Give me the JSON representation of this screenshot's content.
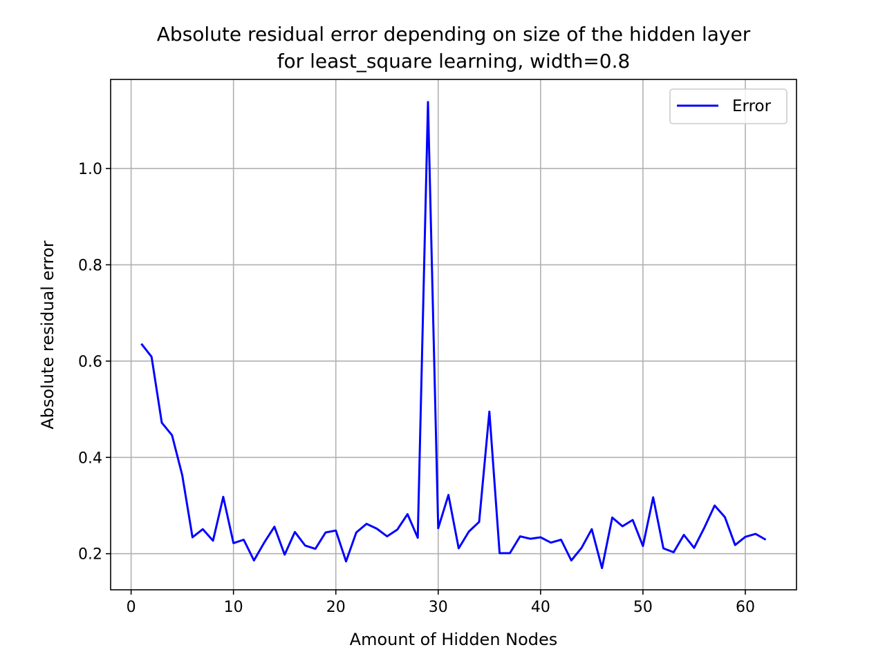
{
  "chart_data": {
    "type": "line",
    "title": "Absolute residual error depending on size of the hidden layer",
    "subtitle": "for least_square learning, width=0.8",
    "xlabel": "Amount of Hidden Nodes",
    "ylabel": "Absolute residual error",
    "xlim": [
      -2,
      65
    ],
    "ylim": [
      0.125,
      1.185
    ],
    "xticks": [
      0,
      10,
      20,
      30,
      40,
      50,
      60
    ],
    "xtick_labels": [
      "0",
      "10",
      "20",
      "30",
      "40",
      "50",
      "60"
    ],
    "yticks": [
      0.2,
      0.4,
      0.6,
      0.8,
      1.0
    ],
    "ytick_labels": [
      "0.2",
      "0.4",
      "0.6",
      "0.8",
      "1.0"
    ],
    "grid": true,
    "legend_position": "top-right",
    "series": [
      {
        "name": "Error",
        "color": "#0000ff",
        "x": [
          1,
          2,
          3,
          4,
          5,
          6,
          7,
          8,
          9,
          10,
          11,
          12,
          13,
          14,
          15,
          16,
          17,
          18,
          19,
          20,
          21,
          22,
          23,
          24,
          25,
          26,
          27,
          28,
          29,
          30,
          31,
          32,
          33,
          34,
          35,
          36,
          37,
          38,
          39,
          40,
          41,
          42,
          43,
          44,
          45,
          46,
          47,
          48,
          49,
          50,
          51,
          52,
          53,
          54,
          55,
          56,
          57,
          58,
          59,
          60,
          61,
          62
        ],
        "y": [
          0.636,
          0.609,
          0.472,
          0.446,
          0.363,
          0.234,
          0.251,
          0.227,
          0.318,
          0.222,
          0.229,
          0.186,
          0.223,
          0.256,
          0.198,
          0.245,
          0.217,
          0.21,
          0.244,
          0.248,
          0.184,
          0.244,
          0.262,
          0.252,
          0.236,
          0.25,
          0.282,
          0.233,
          1.138,
          0.253,
          0.322,
          0.211,
          0.246,
          0.266,
          0.495,
          0.201,
          0.201,
          0.236,
          0.231,
          0.234,
          0.223,
          0.229,
          0.186,
          0.212,
          0.251,
          0.17,
          0.275,
          0.257,
          0.27,
          0.216,
          0.317,
          0.211,
          0.203,
          0.239,
          0.212,
          0.254,
          0.3,
          0.276,
          0.218,
          0.235,
          0.241,
          0.229
        ]
      }
    ]
  }
}
